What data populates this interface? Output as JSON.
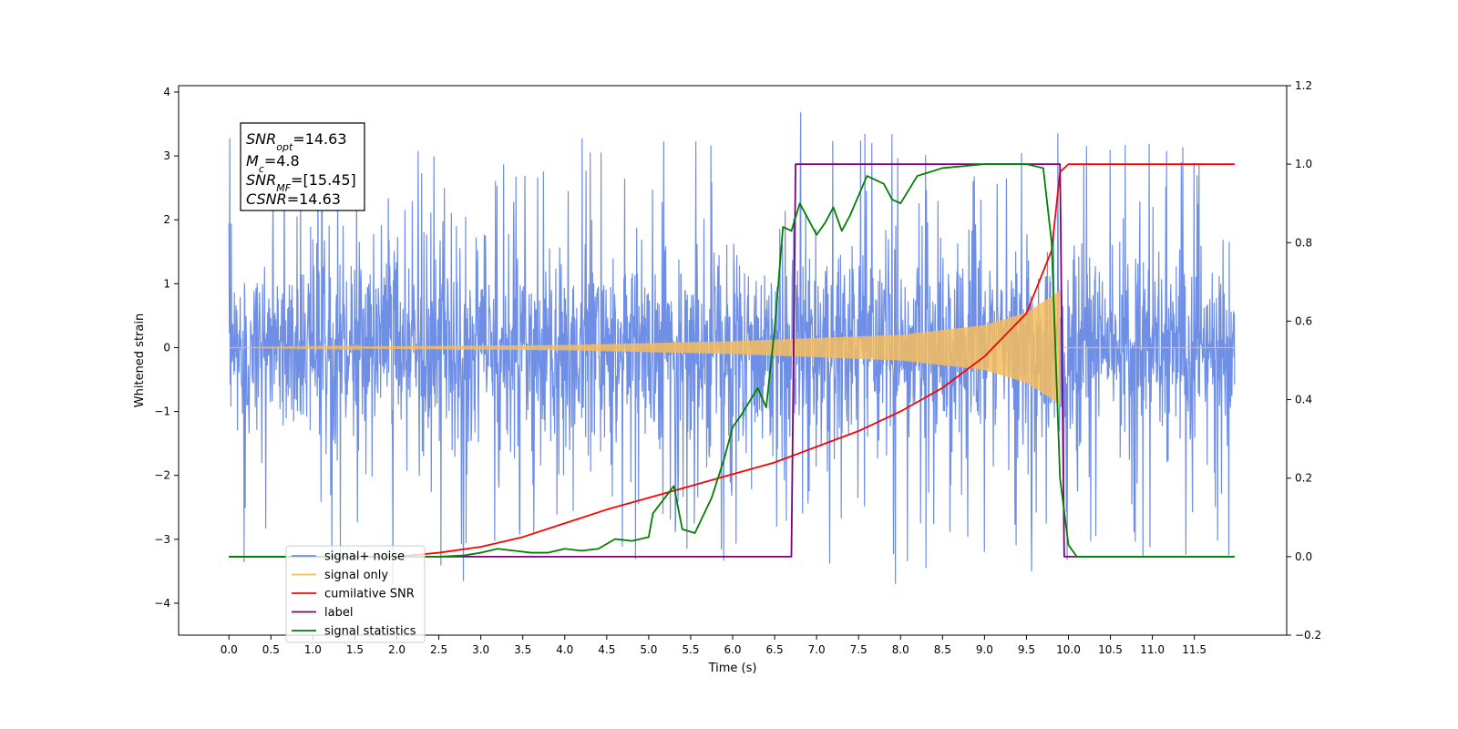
{
  "chart_data": {
    "type": "line",
    "xlabel": "Time (s)",
    "ylabel": "Whitened strain",
    "xlim": [
      -0.6,
      12.6
    ],
    "ylim": [
      -4.5,
      4.1
    ],
    "ylim_right": [
      -0.2,
      1.2
    ],
    "x_ticks": [
      "0.0",
      "0.5",
      "1.0",
      "1.5",
      "2.0",
      "2.5",
      "3.0",
      "3.5",
      "4.0",
      "4.5",
      "5.0",
      "5.5",
      "6.0",
      "6.5",
      "7.0",
      "7.5",
      "8.0",
      "8.5",
      "9.0",
      "9.5",
      "10.0",
      "10.5",
      "11.0",
      "11.5"
    ],
    "y_ticks_left": [
      "4",
      "3",
      "2",
      "1",
      "0",
      "−1",
      "−2",
      "−3",
      "−4"
    ],
    "y_ticks_right": [
      "1.2",
      "1.0",
      "0.8",
      "0.6",
      "0.4",
      "0.2",
      "0.0",
      "−0.2"
    ],
    "grid": false,
    "legend_position": "lower-left",
    "annotation": {
      "snr_opt": {
        "base": "SNR",
        "sub": "opt",
        "value": "=14.63"
      },
      "mc": {
        "base": "M",
        "sub": "c",
        "value": "=4.8"
      },
      "snr_mf": {
        "base": "SNR",
        "sub": "MF",
        "value": "=[15.45]"
      },
      "csnr": {
        "base": "CSNR",
        "sub": "",
        "value": "=14.63"
      }
    },
    "series": [
      {
        "name": "signal+ noise",
        "color": "#6f8fe6",
        "axis": "left",
        "kind": "noise",
        "range": [
          0,
          11.98
        ],
        "sigma": 1.0,
        "envelope_min": 1.3,
        "envelope_max": 3.7
      },
      {
        "name": "signal only",
        "color": "#f6bd5e",
        "axis": "left",
        "kind": "chirp",
        "range": [
          0,
          9.9
        ],
        "envelope": {
          "x": [
            0,
            4.0,
            6.0,
            8.0,
            9.0,
            9.5,
            9.8,
            9.9
          ],
          "y": [
            0.0,
            0.04,
            0.1,
            0.2,
            0.35,
            0.55,
            0.8,
            0.9
          ]
        }
      },
      {
        "name": "cumilative SNR",
        "color": "#ff0000",
        "axis": "right",
        "x": [
          0,
          2.0,
          2.5,
          3.0,
          3.5,
          4.0,
          4.5,
          5.0,
          5.5,
          6.0,
          6.5,
          7.0,
          7.5,
          8.0,
          8.5,
          9.0,
          9.5,
          9.8,
          9.9,
          10.0,
          11.5,
          11.98
        ],
        "y": [
          0.0,
          0.0,
          0.01,
          0.025,
          0.05,
          0.085,
          0.12,
          0.15,
          0.18,
          0.21,
          0.24,
          0.28,
          0.32,
          0.37,
          0.43,
          0.51,
          0.62,
          0.78,
          0.98,
          1.0,
          1.0,
          1.0
        ]
      },
      {
        "name": "label",
        "color": "#800080",
        "axis": "right",
        "x": [
          0,
          6.7,
          6.75,
          9.9,
          9.95,
          11.98
        ],
        "y": [
          0,
          0,
          1,
          1,
          0,
          0
        ]
      },
      {
        "name": "signal statistics",
        "color": "#008000",
        "axis": "right",
        "x": [
          0,
          2.0,
          2.5,
          2.8,
          3.0,
          3.2,
          3.4,
          3.6,
          3.8,
          4.0,
          4.2,
          4.4,
          4.6,
          4.8,
          5.0,
          5.05,
          5.3,
          5.4,
          5.55,
          5.75,
          5.9,
          6.0,
          6.1,
          6.3,
          6.4,
          6.5,
          6.6,
          6.7,
          6.8,
          6.9,
          7.0,
          7.1,
          7.2,
          7.3,
          7.4,
          7.6,
          7.8,
          7.9,
          8.0,
          8.2,
          8.5,
          9.0,
          9.5,
          9.7,
          9.8,
          9.9,
          10.0,
          10.1,
          11.98
        ],
        "y": [
          0.0,
          0.0,
          0.0,
          0.003,
          0.01,
          0.02,
          0.015,
          0.01,
          0.01,
          0.02,
          0.015,
          0.02,
          0.045,
          0.04,
          0.05,
          0.11,
          0.18,
          0.07,
          0.06,
          0.15,
          0.25,
          0.33,
          0.36,
          0.43,
          0.38,
          0.58,
          0.84,
          0.83,
          0.9,
          0.86,
          0.82,
          0.85,
          0.89,
          0.83,
          0.87,
          0.97,
          0.95,
          0.91,
          0.9,
          0.97,
          0.99,
          1.0,
          1.0,
          0.99,
          0.8,
          0.2,
          0.03,
          0.0,
          0.0
        ]
      }
    ]
  }
}
